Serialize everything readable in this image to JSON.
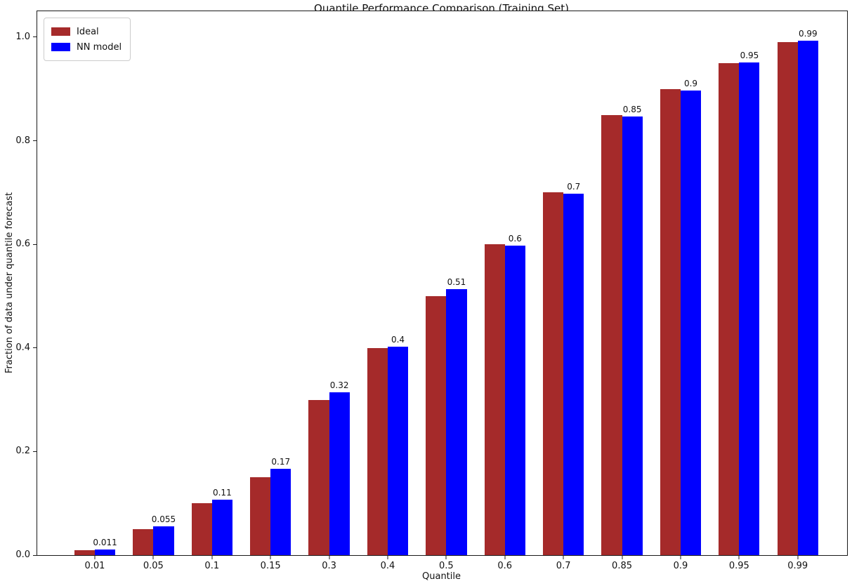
{
  "chart_data": {
    "type": "bar",
    "title": "Quantile Performance Comparison (Training Set)",
    "xlabel": "Quantile",
    "ylabel": "Fraction of data under quantile forecast",
    "categories": [
      "0.01",
      "0.05",
      "0.1",
      "0.15",
      "0.3",
      "0.4",
      "0.5",
      "0.6",
      "0.7",
      "0.85",
      "0.9",
      "0.95",
      "0.99"
    ],
    "series": [
      {
        "name": "Ideal",
        "color": "#A52A2A",
        "values": [
          0.01,
          0.05,
          0.1,
          0.15,
          0.3,
          0.4,
          0.5,
          0.6,
          0.7,
          0.85,
          0.9,
          0.95,
          0.99
        ]
      },
      {
        "name": "NN model",
        "color": "#0000FF",
        "values": [
          0.011,
          0.055,
          0.107,
          0.166,
          0.315,
          0.403,
          0.513,
          0.597,
          0.698,
          0.847,
          0.897,
          0.951,
          0.993
        ]
      }
    ],
    "bar_labels": [
      "0.011",
      "0.055",
      "0.11",
      "0.17",
      "0.32",
      "0.4",
      "0.51",
      "0.6",
      "0.7",
      "0.85",
      "0.9",
      "0.95",
      "0.99"
    ],
    "yticks": [
      "0.0",
      "0.2",
      "0.4",
      "0.6",
      "0.8",
      "1.0"
    ],
    "ylim": [
      0,
      1.05
    ],
    "grid": false,
    "legend_position": "upper-left",
    "background": "#FFFFFF"
  }
}
